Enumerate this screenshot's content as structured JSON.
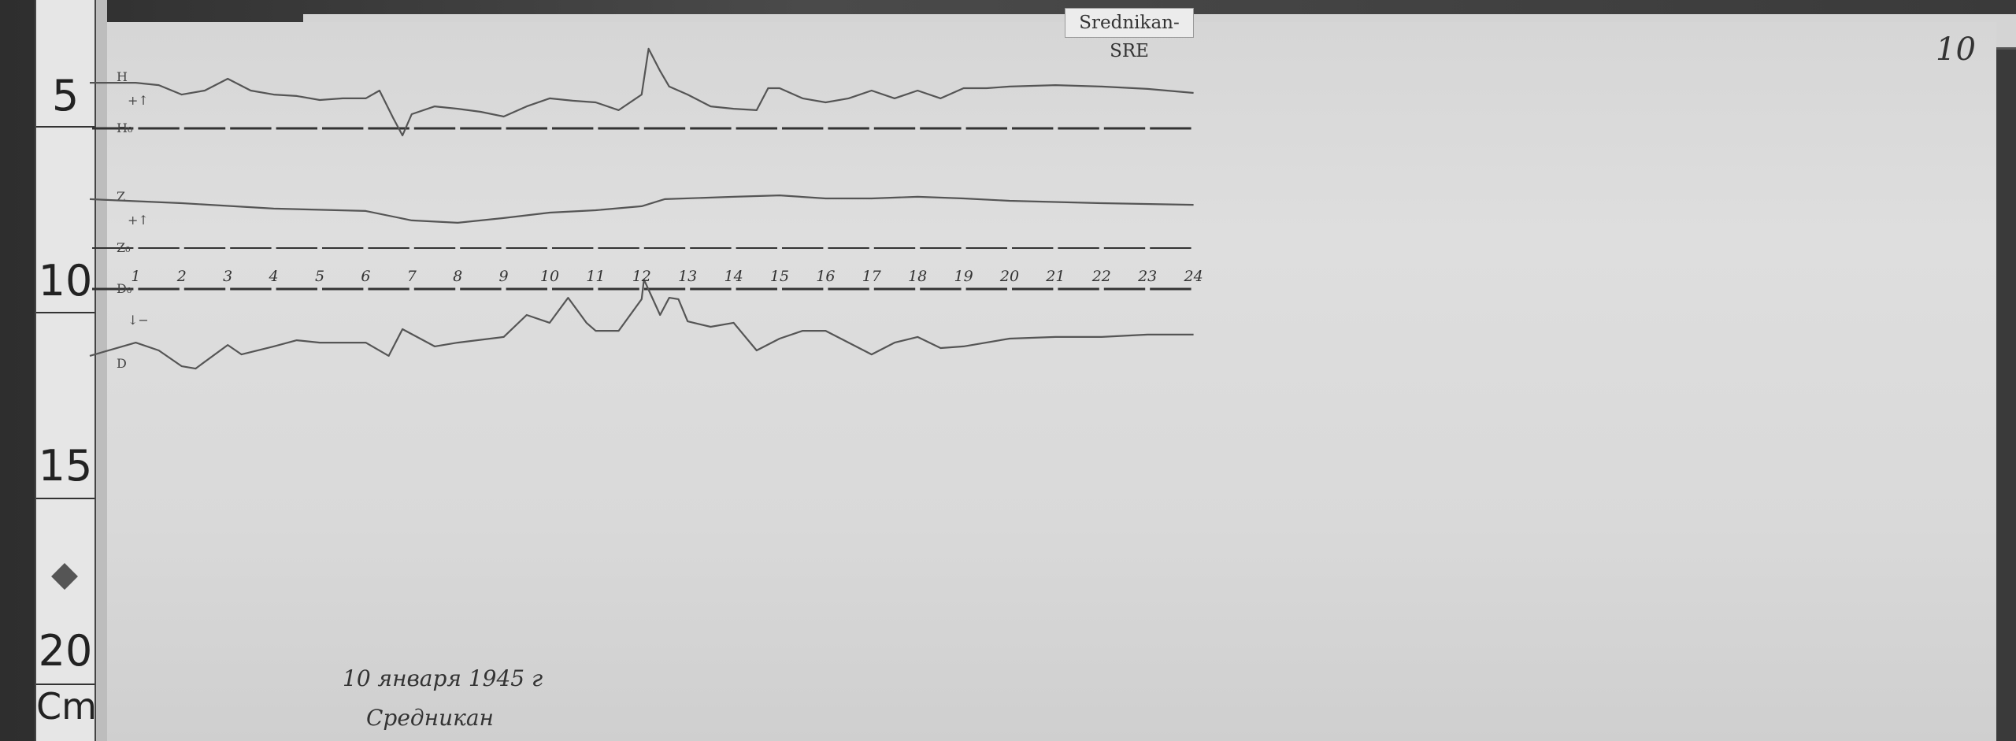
{
  "station_label": "Srednikan-SRE",
  "sheet_number": "10",
  "ruler": {
    "marks": [
      "5",
      "10",
      "15",
      "20"
    ],
    "unit": "Cm"
  },
  "annotation": {
    "date": "10 января 1945 г",
    "place": "Средникан"
  },
  "chart_data": {
    "type": "line",
    "x_ticks": [
      "1",
      "2",
      "3",
      "4",
      "5",
      "6",
      "7",
      "8",
      "9",
      "10",
      "11",
      "12",
      "13",
      "14",
      "15",
      "16",
      "17",
      "18",
      "19",
      "20",
      "21",
      "22",
      "23",
      "24"
    ],
    "xlim": [
      0,
      24
    ],
    "grid": false,
    "channels": [
      {
        "name": "H",
        "baseline_label": "H₀",
        "direction_mark": "+↑",
        "points": [
          [
            0,
            19.3
          ],
          [
            0.5,
            19.3
          ],
          [
            1,
            19.3
          ],
          [
            1.5,
            18.3
          ],
          [
            2,
            14.3
          ],
          [
            2.5,
            16
          ],
          [
            3,
            21
          ],
          [
            3.5,
            16
          ],
          [
            4,
            14.3
          ],
          [
            4.5,
            13.7
          ],
          [
            5,
            12
          ],
          [
            5.5,
            12.7
          ],
          [
            6,
            12.7
          ],
          [
            6.3,
            16
          ],
          [
            6.6,
            4.3
          ],
          [
            6.8,
            -3
          ],
          [
            7,
            6
          ],
          [
            7.5,
            9.3
          ],
          [
            8,
            8.3
          ],
          [
            8.5,
            7
          ],
          [
            9,
            5
          ],
          [
            9.5,
            9.3
          ],
          [
            10,
            12.7
          ],
          [
            10.5,
            11.7
          ],
          [
            11,
            11
          ],
          [
            11.5,
            7.7
          ],
          [
            12,
            14.3
          ],
          [
            12.15,
            33.7
          ],
          [
            12.4,
            24.3
          ],
          [
            12.6,
            17.7
          ],
          [
            13,
            14.3
          ],
          [
            13.5,
            9.3
          ],
          [
            14,
            8.3
          ],
          [
            14.5,
            7.7
          ],
          [
            14.75,
            17
          ],
          [
            15,
            17
          ],
          [
            15.5,
            12.7
          ],
          [
            16,
            11
          ],
          [
            16.5,
            12.7
          ],
          [
            17,
            16
          ],
          [
            17.5,
            12.7
          ],
          [
            18,
            16
          ],
          [
            18.5,
            12.7
          ],
          [
            19,
            17
          ],
          [
            19.5,
            17
          ],
          [
            20,
            17.7
          ],
          [
            21,
            18.3
          ],
          [
            22,
            17.7
          ],
          [
            23,
            16.7
          ],
          [
            24,
            15
          ]
        ]
      },
      {
        "name": "Z",
        "baseline_label": "Z₀",
        "direction_mark": "+↑",
        "points": [
          [
            0,
            20.7
          ],
          [
            2,
            19
          ],
          [
            4,
            16.7
          ],
          [
            6,
            15.7
          ],
          [
            7,
            11.7
          ],
          [
            8,
            10.7
          ],
          [
            9,
            12.7
          ],
          [
            10,
            15
          ],
          [
            11,
            16
          ],
          [
            12,
            17.7
          ],
          [
            12.5,
            20.7
          ],
          [
            14,
            21.7
          ],
          [
            15,
            22.3
          ],
          [
            16,
            21
          ],
          [
            17,
            21
          ],
          [
            18,
            21.7
          ],
          [
            19,
            21
          ],
          [
            20,
            20
          ],
          [
            22,
            19
          ],
          [
            24,
            18.3
          ]
        ]
      },
      {
        "name": "D",
        "baseline_label": "D₀",
        "direction_mark": "↓−",
        "points": [
          [
            0,
            -28.3
          ],
          [
            1,
            -22.7
          ],
          [
            1.5,
            -26
          ],
          [
            2,
            -32.7
          ],
          [
            2.3,
            -33.7
          ],
          [
            3,
            -23.7
          ],
          [
            3.3,
            -27.7
          ],
          [
            4,
            -24.3
          ],
          [
            4.5,
            -21.7
          ],
          [
            5,
            -22.7
          ],
          [
            6,
            -22.7
          ],
          [
            6.5,
            -28.3
          ],
          [
            6.8,
            -17
          ],
          [
            7.5,
            -24.3
          ],
          [
            8,
            -22.7
          ],
          [
            9,
            -20.3
          ],
          [
            9.5,
            -11
          ],
          [
            10,
            -14.3
          ],
          [
            10.4,
            -3.7
          ],
          [
            10.8,
            -14.3
          ],
          [
            11,
            -17.7
          ],
          [
            11.5,
            -17.7
          ],
          [
            12,
            -4.3
          ],
          [
            12.05,
            4
          ],
          [
            12.4,
            -11
          ],
          [
            12.6,
            -3.7
          ],
          [
            12.8,
            -4.3
          ],
          [
            13,
            -13.7
          ],
          [
            13.5,
            -16
          ],
          [
            14,
            -14.3
          ],
          [
            14.5,
            -26
          ],
          [
            15,
            -21
          ],
          [
            15.5,
            -17.7
          ],
          [
            16,
            -17.7
          ],
          [
            16.5,
            -22.7
          ],
          [
            17,
            -27.7
          ],
          [
            17.5,
            -22.7
          ],
          [
            18,
            -20.3
          ],
          [
            18.5,
            -25
          ],
          [
            19,
            -24.3
          ],
          [
            20,
            -21
          ],
          [
            21,
            -20.3
          ],
          [
            22,
            -20.3
          ],
          [
            23,
            -19.3
          ],
          [
            24,
            -19.3
          ]
        ]
      }
    ],
    "colors": {
      "trace": "#555555",
      "baseline": "#333333",
      "paper": "#dadada"
    }
  }
}
